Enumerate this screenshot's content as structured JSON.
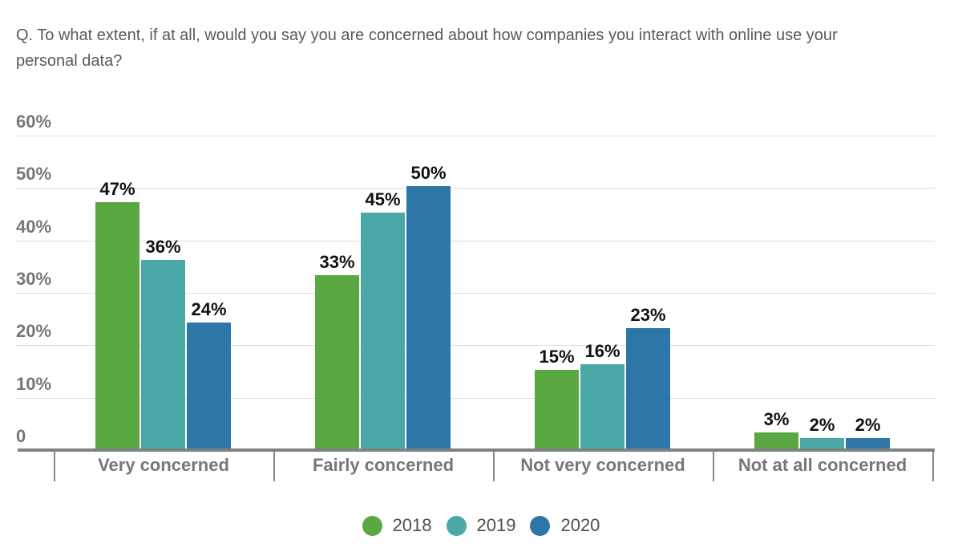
{
  "question": "Q. To what extent, if at all, would you say you are concerned about how companies you interact with online use your personal data?",
  "chart_data": {
    "type": "bar",
    "title": "",
    "xlabel": "",
    "ylabel": "",
    "categories": [
      "Very concerned",
      "Fairly concerned",
      "Not very concerned",
      "Not at all concerned"
    ],
    "series": [
      {
        "name": "2018",
        "color": "#5aa842",
        "values": [
          47,
          33,
          15,
          3
        ]
      },
      {
        "name": "2019",
        "color": "#4aa8a6",
        "values": [
          36,
          45,
          16,
          2
        ]
      },
      {
        "name": "2020",
        "color": "#2f76a8",
        "values": [
          24,
          50,
          23,
          2
        ]
      }
    ],
    "value_suffix": "%",
    "value_labels": [
      [
        "47%",
        "33%",
        "15%",
        "3%"
      ],
      [
        "36%",
        "45%",
        "16%",
        "2%"
      ],
      [
        "24%",
        "50%",
        "23%",
        "2%"
      ]
    ],
    "ylim": [
      0,
      60
    ],
    "y_ticks": [
      {
        "label": "60%",
        "value": 60
      },
      {
        "label": "50%",
        "value": 50
      },
      {
        "label": "40%",
        "value": 40
      },
      {
        "label": "30%",
        "value": 30
      },
      {
        "label": "20%",
        "value": 20
      },
      {
        "label": "10%",
        "value": 10
      },
      {
        "label": "0",
        "value": 0
      }
    ],
    "grid": true,
    "legend_position": "bottom",
    "colors": {
      "grid": "#dddddd",
      "axis": "#808184",
      "tick": "#87888b",
      "axis_labels": "#76777b",
      "value_labels": "#111111",
      "title_text": "#595a5c",
      "legend_text": "#4e4f53"
    }
  }
}
